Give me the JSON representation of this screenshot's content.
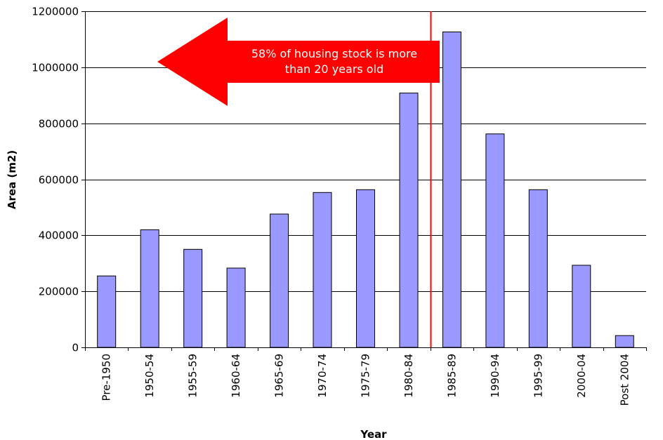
{
  "chart_data": {
    "type": "bar",
    "xlabel": "Year",
    "ylabel": "Area (m2)",
    "ylim": [
      0,
      1200000
    ],
    "y_ticks": [
      0,
      200000,
      400000,
      600000,
      800000,
      1000000,
      1200000
    ],
    "y_tick_labels": [
      "0",
      "200000",
      "400000",
      "600000",
      "800000",
      "1000000",
      "1200000"
    ],
    "categories": [
      "Pre-1950",
      "1950-54",
      "1955-59",
      "1960-64",
      "1965-69",
      "1970-74",
      "1975-79",
      "1980-84",
      "1985-89",
      "1990-94",
      "1995-99",
      "2000-04",
      "Post 2004"
    ],
    "values": [
      255000,
      420000,
      350000,
      283000,
      476000,
      553000,
      563000,
      908000,
      1126000,
      762000,
      563000,
      293000,
      42000
    ],
    "grid": true,
    "bar_color": "#9999ff",
    "divider": {
      "after_category": "1980-84",
      "color": "#ff0000"
    },
    "annotation": {
      "lines": [
        "58% of housing stock is more",
        "than 20 years old"
      ],
      "color": "#ff0000",
      "direction": "left"
    }
  }
}
